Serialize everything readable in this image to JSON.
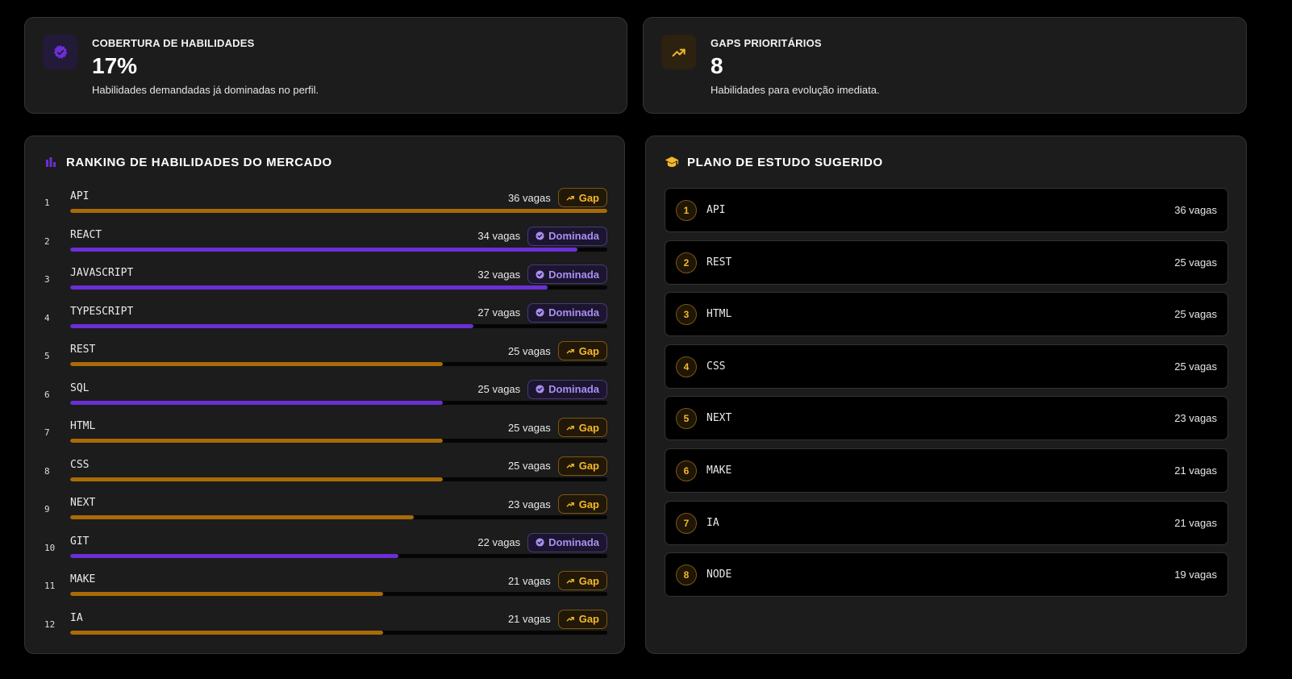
{
  "stats": {
    "coverage": {
      "label": "COBERTURA DE HABILIDADES",
      "value": "17%",
      "desc": "Habilidades demandadas já dominadas no perfil.",
      "icon": "verified-badge-icon",
      "color": "#6b2fd6"
    },
    "gaps": {
      "label": "GAPS PRIORITÁRIOS",
      "value": "8",
      "desc": "Habilidades para evolução imediata.",
      "icon": "trending-up-icon",
      "color": "#f5b82a"
    }
  },
  "ranking": {
    "title": "RANKING DE HABILIDADES DO MERCADO",
    "icon": "bar-chart-icon",
    "max_vagas": 36,
    "items": [
      {
        "rank": "1",
        "name": "API",
        "vagas": 36,
        "vagas_label": "36 vagas",
        "status": "gap",
        "badge": "Gap"
      },
      {
        "rank": "2",
        "name": "REACT",
        "vagas": 34,
        "vagas_label": "34 vagas",
        "status": "dom",
        "badge": "Dominada"
      },
      {
        "rank": "3",
        "name": "JAVASCRIPT",
        "vagas": 32,
        "vagas_label": "32 vagas",
        "status": "dom",
        "badge": "Dominada"
      },
      {
        "rank": "4",
        "name": "TYPESCRIPT",
        "vagas": 27,
        "vagas_label": "27 vagas",
        "status": "dom",
        "badge": "Dominada"
      },
      {
        "rank": "5",
        "name": "REST",
        "vagas": 25,
        "vagas_label": "25 vagas",
        "status": "gap",
        "badge": "Gap"
      },
      {
        "rank": "6",
        "name": "SQL",
        "vagas": 25,
        "vagas_label": "25 vagas",
        "status": "dom",
        "badge": "Dominada"
      },
      {
        "rank": "7",
        "name": "HTML",
        "vagas": 25,
        "vagas_label": "25 vagas",
        "status": "gap",
        "badge": "Gap"
      },
      {
        "rank": "8",
        "name": "CSS",
        "vagas": 25,
        "vagas_label": "25 vagas",
        "status": "gap",
        "badge": "Gap"
      },
      {
        "rank": "9",
        "name": "NEXT",
        "vagas": 23,
        "vagas_label": "23 vagas",
        "status": "gap",
        "badge": "Gap"
      },
      {
        "rank": "10",
        "name": "GIT",
        "vagas": 22,
        "vagas_label": "22 vagas",
        "status": "dom",
        "badge": "Dominada"
      },
      {
        "rank": "11",
        "name": "MAKE",
        "vagas": 21,
        "vagas_label": "21 vagas",
        "status": "gap",
        "badge": "Gap"
      },
      {
        "rank": "12",
        "name": "IA",
        "vagas": 21,
        "vagas_label": "21 vagas",
        "status": "gap",
        "badge": "Gap"
      }
    ]
  },
  "plan": {
    "title": "PLANO DE ESTUDO SUGERIDO",
    "icon": "graduation-cap-icon",
    "items": [
      {
        "num": "1",
        "name": "API",
        "vagas_label": "36 vagas"
      },
      {
        "num": "2",
        "name": "REST",
        "vagas_label": "25 vagas"
      },
      {
        "num": "3",
        "name": "HTML",
        "vagas_label": "25 vagas"
      },
      {
        "num": "4",
        "name": "CSS",
        "vagas_label": "25 vagas"
      },
      {
        "num": "5",
        "name": "NEXT",
        "vagas_label": "23 vagas"
      },
      {
        "num": "6",
        "name": "MAKE",
        "vagas_label": "21 vagas"
      },
      {
        "num": "7",
        "name": "IA",
        "vagas_label": "21 vagas"
      },
      {
        "num": "8",
        "name": "NODE",
        "vagas_label": "19 vagas"
      }
    ]
  }
}
